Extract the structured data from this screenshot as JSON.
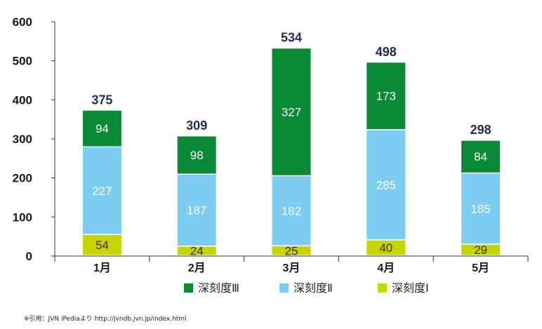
{
  "chart_data": {
    "type": "bar",
    "stacked": true,
    "categories": [
      "1月",
      "2月",
      "3月",
      "4月",
      "5月"
    ],
    "series": [
      {
        "name": "深刻度Ⅰ",
        "values": [
          54,
          24,
          25,
          40,
          29
        ],
        "color": "#c8d400"
      },
      {
        "name": "深刻度Ⅱ",
        "values": [
          227,
          187,
          182,
          285,
          185
        ],
        "color": "#7ccdf1"
      },
      {
        "name": "深刻度Ⅲ",
        "values": [
          94,
          98,
          327,
          173,
          84
        ],
        "color": "#0b8a35"
      }
    ],
    "totals": [
      375,
      309,
      534,
      498,
      298
    ],
    "ylim": [
      0,
      600
    ],
    "yticks": [
      "0",
      "100",
      "200",
      "300",
      "400",
      "500",
      "600"
    ],
    "legend": {
      "position": "bottom",
      "order": [
        "深刻度Ⅲ",
        "深刻度Ⅱ",
        "深刻度Ⅰ"
      ]
    },
    "grid": false
  },
  "footnote": "※引用：JVN iPediaより  http://jvndb.jvn.jp/index.html"
}
